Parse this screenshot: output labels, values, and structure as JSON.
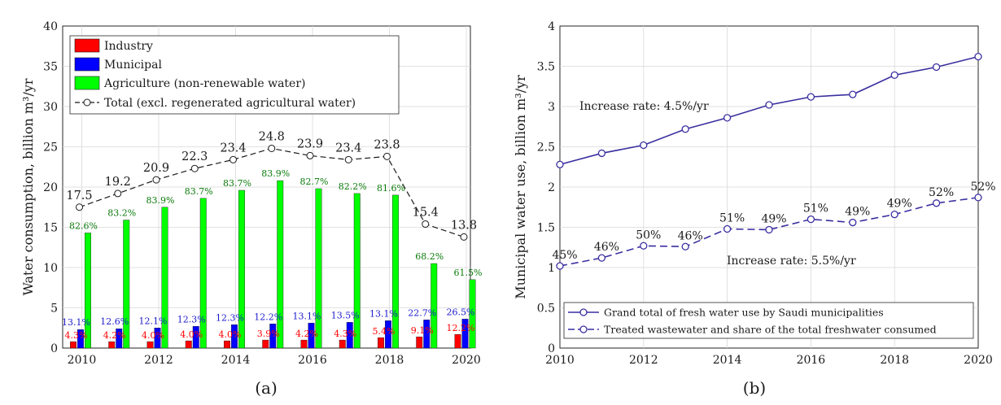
{
  "chart_data": [
    {
      "type": "bar",
      "panel_label": "(a)",
      "ylabel": "Water consumption, billion m³/yr",
      "ylim": [
        0,
        40
      ],
      "yticks": [
        "0",
        "5",
        "10",
        "15",
        "20",
        "25",
        "30",
        "35",
        "40"
      ],
      "xticks": [
        "2010",
        "2012",
        "2014",
        "2016",
        "2018",
        "2020"
      ],
      "categories": [
        "2010",
        "2011",
        "2012",
        "2013",
        "2014",
        "2015",
        "2016",
        "2017",
        "2018",
        "2019",
        "2020"
      ],
      "legend_position": "top-left",
      "series": [
        {
          "name": "Industry",
          "color": "#ff0000",
          "values": [
            0.8,
            0.8,
            0.8,
            0.9,
            0.9,
            1.0,
            1.0,
            1.0,
            1.3,
            1.4,
            1.7
          ],
          "labels": [
            "4.3%",
            "4.2%",
            "4.0%",
            "4.0%",
            "4.0%",
            "3.9%",
            "4.2%",
            "4.3%",
            "5.4%",
            "9.1%",
            "12.2%"
          ]
        },
        {
          "name": "Municipal",
          "color": "#0000ff",
          "values": [
            2.3,
            2.4,
            2.5,
            2.7,
            2.9,
            3.0,
            3.1,
            3.2,
            3.4,
            3.5,
            3.6
          ],
          "labels": [
            "13.1%",
            "12.6%",
            "12.1%",
            "12.3%",
            "12.3%",
            "12.2%",
            "13.1%",
            "13.5%",
            "13.1%",
            "22.7%",
            "26.5%"
          ]
        },
        {
          "name": "Agriculture (non-renewable water)",
          "color": "#00ff00",
          "values": [
            14.3,
            15.9,
            17.5,
            18.6,
            19.6,
            20.8,
            19.8,
            19.2,
            19.0,
            10.5,
            8.5
          ],
          "labels": [
            "82.6%",
            "83.2%",
            "83.9%",
            "83.7%",
            "83.7%",
            "83.9%",
            "82.7%",
            "82.2%",
            "81.6%",
            "68.2%",
            "61.5%"
          ]
        },
        {
          "name": "Total (excl. regenerated agricultural water)",
          "color": "#000000",
          "style": "dashed-circle",
          "values": [
            17.5,
            19.2,
            20.9,
            22.3,
            23.4,
            24.8,
            23.9,
            23.4,
            23.8,
            15.4,
            13.8
          ],
          "labels": [
            "17.5",
            "19.2",
            "20.9",
            "22.3",
            "23.4",
            "24.8",
            "23.9",
            "23.4",
            "23.8",
            "15.4",
            "13.8"
          ]
        }
      ]
    },
    {
      "type": "line",
      "panel_label": "(b)",
      "ylabel": "Municipal water use, billion m³/yr",
      "ylim": [
        0,
        4
      ],
      "xlim": [
        2010,
        2020
      ],
      "yticks": [
        "0",
        "0.5",
        "1",
        "1.5",
        "2",
        "2.5",
        "3",
        "3.5",
        "4"
      ],
      "xticks": [
        "2010",
        "2012",
        "2014",
        "2016",
        "2018",
        "2020"
      ],
      "x": [
        2010,
        2011,
        2012,
        2013,
        2014,
        2015,
        2016,
        2017,
        2018,
        2019,
        2020
      ],
      "legend_position": "bottom-right",
      "annotations": [
        "Increase rate: 4.5%/yr",
        "Increase rate: 5.5%/yr"
      ],
      "series": [
        {
          "name": "Grand total of fresh water use by Saudi municipalities",
          "color": "#3a2fa0",
          "style": "solid-circle",
          "values": [
            2.28,
            2.42,
            2.52,
            2.72,
            2.86,
            3.02,
            3.12,
            3.15,
            3.39,
            3.49,
            3.62
          ]
        },
        {
          "name": "Treated wastewater and share of the total freshwater consumed",
          "color": "#3a2fa0",
          "style": "dashed-circle",
          "values": [
            1.02,
            1.12,
            1.27,
            1.26,
            1.48,
            1.47,
            1.6,
            1.56,
            1.66,
            1.8,
            1.87
          ],
          "labels": [
            "45%",
            "46%",
            "50%",
            "46%",
            "51%",
            "49%",
            "51%",
            "49%",
            "49%",
            "52%",
            "52%"
          ]
        }
      ]
    }
  ]
}
